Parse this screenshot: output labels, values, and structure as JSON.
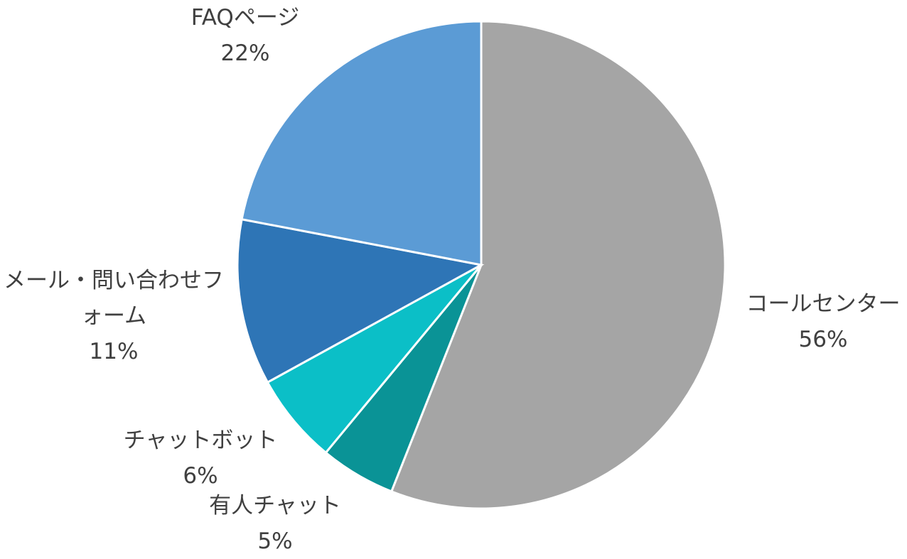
{
  "chart_data": {
    "type": "pie",
    "categories": [
      "コールセンター",
      "有人チャット",
      "チャットボット",
      "メール・問い合わせフォーム",
      "FAQページ"
    ],
    "values": [
      56,
      5,
      6,
      11,
      22
    ],
    "value_labels": [
      "56%",
      "5%",
      "6%",
      "11%",
      "22%"
    ],
    "colors": [
      "#a5a5a5",
      "#0a9396",
      "#0bbfc7",
      "#2e75b6",
      "#5b9bd5"
    ]
  }
}
